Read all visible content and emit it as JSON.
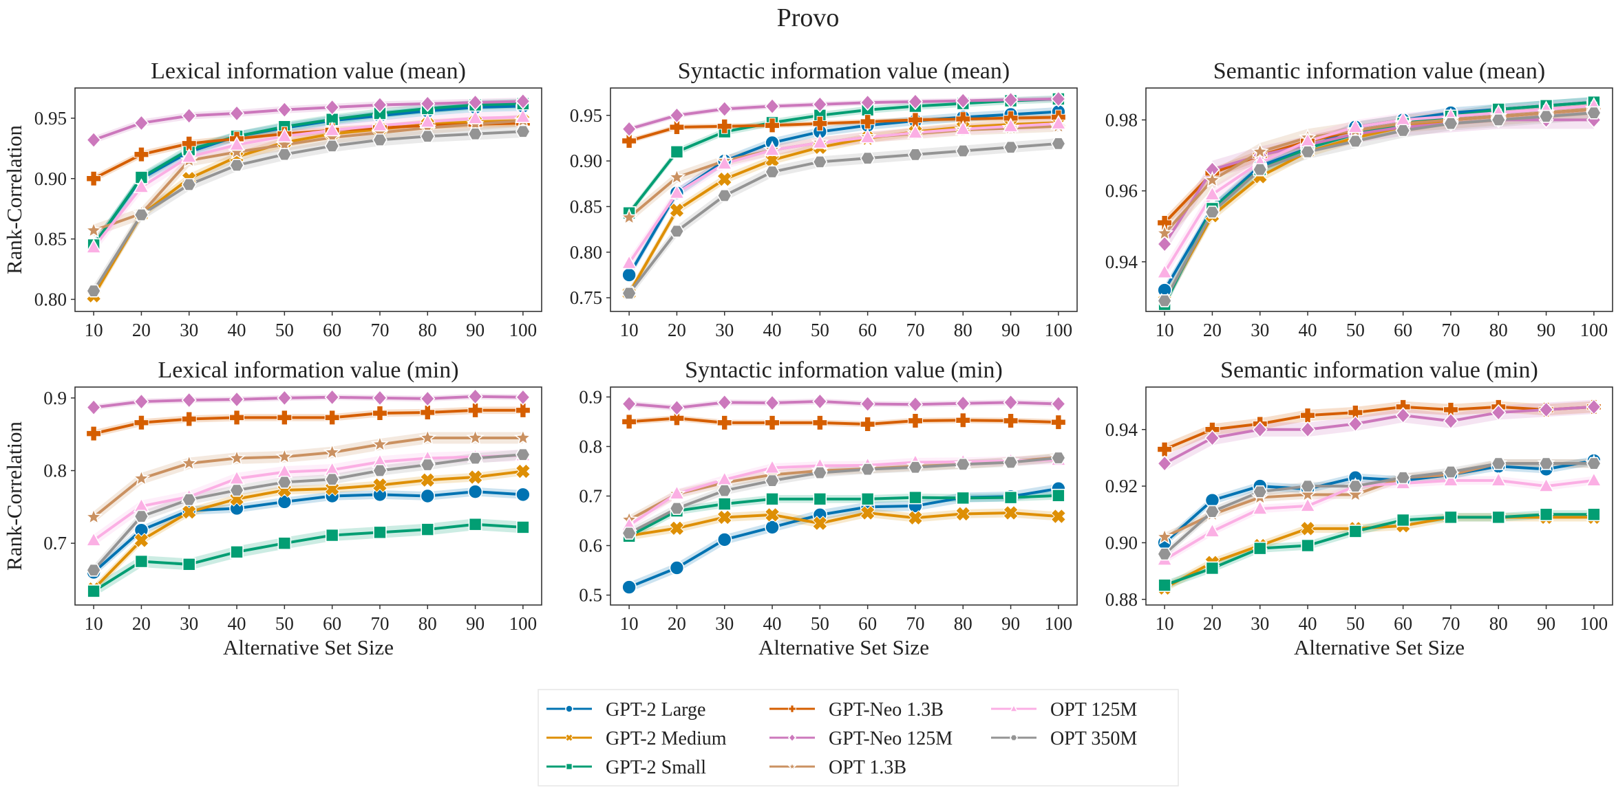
{
  "figure_title": "Provo",
  "colors": {
    "GPT-2 Large": "#0173b2",
    "GPT-2 Medium": "#de8f05",
    "GPT-2 Small": "#029e73",
    "GPT-Neo 1.3B": "#d55e00",
    "GPT-Neo 125M": "#cc78bc",
    "OPT 1.3B": "#ca9161",
    "OPT 125M": "#fbafe4",
    "OPT 350M": "#949494"
  },
  "markers": {
    "GPT-2 Large": "circle",
    "GPT-2 Medium": "x",
    "GPT-2 Small": "square",
    "GPT-Neo 1.3B": "plus",
    "GPT-Neo 125M": "diamond",
    "OPT 1.3B": "star",
    "OPT 125M": "triangle",
    "OPT 350M": "hex"
  },
  "legend": {
    "entries": [
      "GPT-2 Large",
      "GPT-2 Medium",
      "GPT-2 Small",
      "GPT-Neo 1.3B",
      "GPT-Neo 125M",
      "OPT 1.3B",
      "OPT 125M",
      "OPT 350M"
    ],
    "placement": "bottom-center"
  },
  "chart_data": [
    {
      "type": "line",
      "title": "Lexical information value (mean)",
      "xlabel": "",
      "ylabel": "Rank-Correlation",
      "x": [
        10,
        20,
        30,
        40,
        50,
        60,
        70,
        80,
        90,
        100
      ],
      "ylim": [
        0.79,
        0.975
      ],
      "yticks": [
        0.8,
        0.85,
        0.9,
        0.95
      ],
      "ytick_labels": [
        "0.80",
        "0.85",
        "0.90",
        "0.95"
      ],
      "series": [
        {
          "name": "GPT-2 Large",
          "values": [
            0.845,
            0.9,
            0.922,
            0.935,
            0.942,
            0.948,
            0.952,
            0.956,
            0.959,
            0.96
          ],
          "band": 0.004
        },
        {
          "name": "GPT-2 Medium",
          "values": [
            0.803,
            0.87,
            0.9,
            0.918,
            0.93,
            0.937,
            0.941,
            0.945,
            0.947,
            0.948
          ],
          "band": 0.004
        },
        {
          "name": "GPT-2 Small",
          "values": [
            0.845,
            0.901,
            0.924,
            0.935,
            0.943,
            0.949,
            0.954,
            0.958,
            0.961,
            0.962
          ],
          "band": 0.004
        },
        {
          "name": "GPT-Neo 1.3B",
          "values": [
            0.9,
            0.92,
            0.929,
            0.933,
            0.937,
            0.94,
            0.942,
            0.944,
            0.945,
            0.946
          ],
          "band": 0.003
        },
        {
          "name": "GPT-Neo 125M",
          "values": [
            0.932,
            0.946,
            0.952,
            0.954,
            0.957,
            0.959,
            0.961,
            0.962,
            0.963,
            0.964
          ],
          "band": 0.003
        },
        {
          "name": "OPT 1.3B",
          "values": [
            0.857,
            0.871,
            0.915,
            0.922,
            0.928,
            0.934,
            0.938,
            0.942,
            0.945,
            0.948
          ],
          "band": 0.005
        },
        {
          "name": "OPT 125M",
          "values": [
            0.843,
            0.893,
            0.918,
            0.928,
            0.935,
            0.94,
            0.944,
            0.947,
            0.95,
            0.951
          ],
          "band": 0.005
        },
        {
          "name": "OPT 350M",
          "values": [
            0.807,
            0.87,
            0.895,
            0.911,
            0.92,
            0.927,
            0.932,
            0.935,
            0.937,
            0.939
          ],
          "band": 0.005
        }
      ]
    },
    {
      "type": "line",
      "title": "Syntactic information value (mean)",
      "xlabel": "",
      "ylabel": "",
      "x": [
        10,
        20,
        30,
        40,
        50,
        60,
        70,
        80,
        90,
        100
      ],
      "ylim": [
        0.735,
        0.98
      ],
      "yticks": [
        0.75,
        0.8,
        0.85,
        0.9,
        0.95
      ],
      "ytick_labels": [
        "0.75",
        "0.80",
        "0.85",
        "0.90",
        "0.95"
      ],
      "series": [
        {
          "name": "GPT-2 Large",
          "values": [
            0.775,
            0.865,
            0.9,
            0.92,
            0.932,
            0.939,
            0.944,
            0.948,
            0.951,
            0.954
          ],
          "band": 0.005
        },
        {
          "name": "GPT-2 Medium",
          "values": [
            0.755,
            0.846,
            0.88,
            0.901,
            0.915,
            0.925,
            0.932,
            0.937,
            0.94,
            0.942
          ],
          "band": 0.005
        },
        {
          "name": "GPT-2 Small",
          "values": [
            0.843,
            0.91,
            0.932,
            0.942,
            0.95,
            0.956,
            0.96,
            0.963,
            0.966,
            0.968
          ],
          "band": 0.004
        },
        {
          "name": "GPT-Neo 1.3B",
          "values": [
            0.922,
            0.937,
            0.938,
            0.939,
            0.941,
            0.943,
            0.945,
            0.946,
            0.947,
            0.948
          ],
          "band": 0.003
        },
        {
          "name": "GPT-Neo 125M",
          "values": [
            0.935,
            0.95,
            0.957,
            0.96,
            0.962,
            0.964,
            0.965,
            0.966,
            0.967,
            0.968
          ],
          "band": 0.003
        },
        {
          "name": "OPT 1.3B",
          "values": [
            0.838,
            0.882,
            0.9,
            0.912,
            0.92,
            0.926,
            0.93,
            0.934,
            0.936,
            0.938
          ],
          "band": 0.006
        },
        {
          "name": "OPT 125M",
          "values": [
            0.788,
            0.865,
            0.897,
            0.912,
            0.92,
            0.926,
            0.931,
            0.935,
            0.938,
            0.941
          ],
          "band": 0.006
        },
        {
          "name": "OPT 350M",
          "values": [
            0.755,
            0.823,
            0.862,
            0.888,
            0.899,
            0.903,
            0.907,
            0.911,
            0.915,
            0.919
          ],
          "band": 0.006
        }
      ]
    },
    {
      "type": "line",
      "title": "Semantic information value (mean)",
      "xlabel": "",
      "ylabel": "",
      "x": [
        10,
        20,
        30,
        40,
        50,
        60,
        70,
        80,
        90,
        100
      ],
      "ylim": [
        0.926,
        0.989
      ],
      "yticks": [
        0.94,
        0.96,
        0.98
      ],
      "ytick_labels": [
        "0.94",
        "0.96",
        "0.98"
      ],
      "series": [
        {
          "name": "GPT-2 Large",
          "values": [
            0.932,
            0.955,
            0.967,
            0.972,
            0.978,
            0.98,
            0.982,
            0.983,
            0.984,
            0.985
          ],
          "band": 0.0015
        },
        {
          "name": "GPT-2 Medium",
          "values": [
            0.929,
            0.953,
            0.964,
            0.971,
            0.975,
            0.978,
            0.98,
            0.981,
            0.982,
            0.983
          ],
          "band": 0.0015
        },
        {
          "name": "GPT-2 Small",
          "values": [
            0.928,
            0.955,
            0.966,
            0.972,
            0.976,
            0.979,
            0.981,
            0.983,
            0.984,
            0.985
          ],
          "band": 0.0015
        },
        {
          "name": "GPT-Neo 1.3B",
          "values": [
            0.951,
            0.965,
            0.97,
            0.974,
            0.977,
            0.979,
            0.98,
            0.981,
            0.982,
            0.983
          ],
          "band": 0.0015
        },
        {
          "name": "GPT-Neo 125M",
          "values": [
            0.945,
            0.966,
            0.97,
            0.973,
            0.976,
            0.978,
            0.979,
            0.98,
            0.98,
            0.98
          ],
          "band": 0.0025
        },
        {
          "name": "OPT 1.3B",
          "values": [
            0.948,
            0.963,
            0.971,
            0.975,
            0.977,
            0.979,
            0.98,
            0.981,
            0.982,
            0.983
          ],
          "band": 0.0025
        },
        {
          "name": "OPT 125M",
          "values": [
            0.937,
            0.959,
            0.968,
            0.974,
            0.978,
            0.98,
            0.981,
            0.982,
            0.983,
            0.984
          ],
          "band": 0.002
        },
        {
          "name": "OPT 350M",
          "values": [
            0.929,
            0.954,
            0.966,
            0.971,
            0.974,
            0.977,
            0.979,
            0.98,
            0.981,
            0.982
          ],
          "band": 0.002
        }
      ]
    },
    {
      "type": "line",
      "title": "Lexical information value (min)",
      "xlabel": "Alternative Set Size",
      "ylabel": "Rank-Correlation",
      "x": [
        10,
        20,
        30,
        40,
        50,
        60,
        70,
        80,
        90,
        100
      ],
      "ylim": [
        0.615,
        0.915
      ],
      "yticks": [
        0.7,
        0.8,
        0.9
      ],
      "ytick_labels": [
        "0.7",
        "0.8",
        "0.9"
      ],
      "series": [
        {
          "name": "GPT-2 Large",
          "values": [
            0.66,
            0.718,
            0.745,
            0.748,
            0.757,
            0.765,
            0.767,
            0.765,
            0.771,
            0.767
          ],
          "band": 0.006
        },
        {
          "name": "GPT-2 Medium",
          "values": [
            0.637,
            0.704,
            0.743,
            0.761,
            0.773,
            0.775,
            0.78,
            0.787,
            0.791,
            0.799
          ],
          "band": 0.006
        },
        {
          "name": "GPT-2 Small",
          "values": [
            0.634,
            0.675,
            0.671,
            0.688,
            0.7,
            0.711,
            0.715,
            0.719,
            0.726,
            0.722
          ],
          "band": 0.008
        },
        {
          "name": "GPT-Neo 1.3B",
          "values": [
            0.851,
            0.866,
            0.871,
            0.873,
            0.873,
            0.873,
            0.879,
            0.88,
            0.883,
            0.883
          ],
          "band": 0.005
        },
        {
          "name": "GPT-Neo 125M",
          "values": [
            0.887,
            0.895,
            0.897,
            0.898,
            0.9,
            0.901,
            0.9,
            0.899,
            0.902,
            0.901
          ],
          "band": 0.004
        },
        {
          "name": "OPT 1.3B",
          "values": [
            0.736,
            0.789,
            0.81,
            0.817,
            0.819,
            0.825,
            0.836,
            0.845,
            0.845,
            0.845
          ],
          "band": 0.008
        },
        {
          "name": "OPT 125M",
          "values": [
            0.704,
            0.751,
            0.764,
            0.789,
            0.798,
            0.801,
            0.812,
            0.817,
            0.819,
            0.821
          ],
          "band": 0.008
        },
        {
          "name": "OPT 350M",
          "values": [
            0.663,
            0.737,
            0.76,
            0.773,
            0.784,
            0.788,
            0.8,
            0.808,
            0.817,
            0.822
          ],
          "band": 0.007
        }
      ]
    },
    {
      "type": "line",
      "title": "Syntactic information value (min)",
      "xlabel": "Alternative Set Size",
      "ylabel": "",
      "x": [
        10,
        20,
        30,
        40,
        50,
        60,
        70,
        80,
        90,
        100
      ],
      "ylim": [
        0.48,
        0.92
      ],
      "yticks": [
        0.5,
        0.6,
        0.7,
        0.8,
        0.9
      ],
      "ytick_labels": [
        "0.5",
        "0.6",
        "0.7",
        "0.8",
        "0.9"
      ],
      "series": [
        {
          "name": "GPT-2 Large",
          "values": [
            0.516,
            0.555,
            0.612,
            0.637,
            0.662,
            0.678,
            0.68,
            0.697,
            0.699,
            0.715
          ],
          "band": 0.01
        },
        {
          "name": "GPT-2 Medium",
          "values": [
            0.62,
            0.635,
            0.657,
            0.662,
            0.645,
            0.666,
            0.656,
            0.664,
            0.666,
            0.659
          ],
          "band": 0.009
        },
        {
          "name": "GPT-2 Small",
          "values": [
            0.619,
            0.67,
            0.684,
            0.694,
            0.694,
            0.694,
            0.697,
            0.696,
            0.697,
            0.701
          ],
          "band": 0.008
        },
        {
          "name": "GPT-Neo 1.3B",
          "values": [
            0.85,
            0.857,
            0.848,
            0.848,
            0.848,
            0.845,
            0.852,
            0.853,
            0.852,
            0.849
          ],
          "band": 0.006
        },
        {
          "name": "GPT-Neo 125M",
          "values": [
            0.886,
            0.878,
            0.889,
            0.888,
            0.891,
            0.886,
            0.885,
            0.887,
            0.889,
            0.886
          ],
          "band": 0.006
        },
        {
          "name": "OPT 1.3B",
          "values": [
            0.652,
            0.704,
            0.727,
            0.743,
            0.751,
            0.755,
            0.76,
            0.764,
            0.77,
            0.778
          ],
          "band": 0.009
        },
        {
          "name": "OPT 125M",
          "values": [
            0.641,
            0.705,
            0.733,
            0.757,
            0.761,
            0.762,
            0.768,
            0.769,
            0.771,
            0.773
          ],
          "band": 0.009
        },
        {
          "name": "OPT 350M",
          "values": [
            0.625,
            0.675,
            0.711,
            0.731,
            0.747,
            0.754,
            0.758,
            0.764,
            0.768,
            0.777
          ],
          "band": 0.009
        }
      ]
    },
    {
      "type": "line",
      "title": "Semantic information value (min)",
      "xlabel": "Alternative Set Size",
      "ylabel": "",
      "x": [
        10,
        20,
        30,
        40,
        50,
        60,
        70,
        80,
        90,
        100
      ],
      "ylim": [
        0.878,
        0.955
      ],
      "yticks": [
        0.88,
        0.9,
        0.92,
        0.94
      ],
      "ytick_labels": [
        "0.88",
        "0.90",
        "0.92",
        "0.94"
      ],
      "series": [
        {
          "name": "GPT-2 Large",
          "values": [
            0.9,
            0.915,
            0.92,
            0.919,
            0.923,
            0.922,
            0.924,
            0.927,
            0.926,
            0.929
          ],
          "band": 0.0015
        },
        {
          "name": "GPT-2 Medium",
          "values": [
            0.884,
            0.893,
            0.899,
            0.905,
            0.905,
            0.906,
            0.909,
            0.909,
            0.909,
            0.909
          ],
          "band": 0.0015
        },
        {
          "name": "GPT-2 Small",
          "values": [
            0.885,
            0.891,
            0.898,
            0.899,
            0.904,
            0.908,
            0.909,
            0.909,
            0.91,
            0.91
          ],
          "band": 0.0015
        },
        {
          "name": "GPT-Neo 1.3B",
          "values": [
            0.933,
            0.94,
            0.942,
            0.945,
            0.946,
            0.948,
            0.947,
            0.948,
            0.947,
            0.948
          ],
          "band": 0.002
        },
        {
          "name": "GPT-Neo 125M",
          "values": [
            0.928,
            0.937,
            0.94,
            0.94,
            0.942,
            0.945,
            0.943,
            0.946,
            0.947,
            0.948
          ],
          "band": 0.0025
        },
        {
          "name": "OPT 1.3B",
          "values": [
            0.902,
            0.91,
            0.916,
            0.917,
            0.917,
            0.923,
            0.924,
            0.928,
            0.928,
            0.928
          ],
          "band": 0.0015
        },
        {
          "name": "OPT 125M",
          "values": [
            0.894,
            0.904,
            0.912,
            0.913,
            0.92,
            0.921,
            0.922,
            0.922,
            0.92,
            0.922
          ],
          "band": 0.0015
        },
        {
          "name": "OPT 350M",
          "values": [
            0.896,
            0.911,
            0.918,
            0.92,
            0.92,
            0.923,
            0.925,
            0.928,
            0.928,
            0.928
          ],
          "band": 0.0015
        }
      ]
    }
  ]
}
